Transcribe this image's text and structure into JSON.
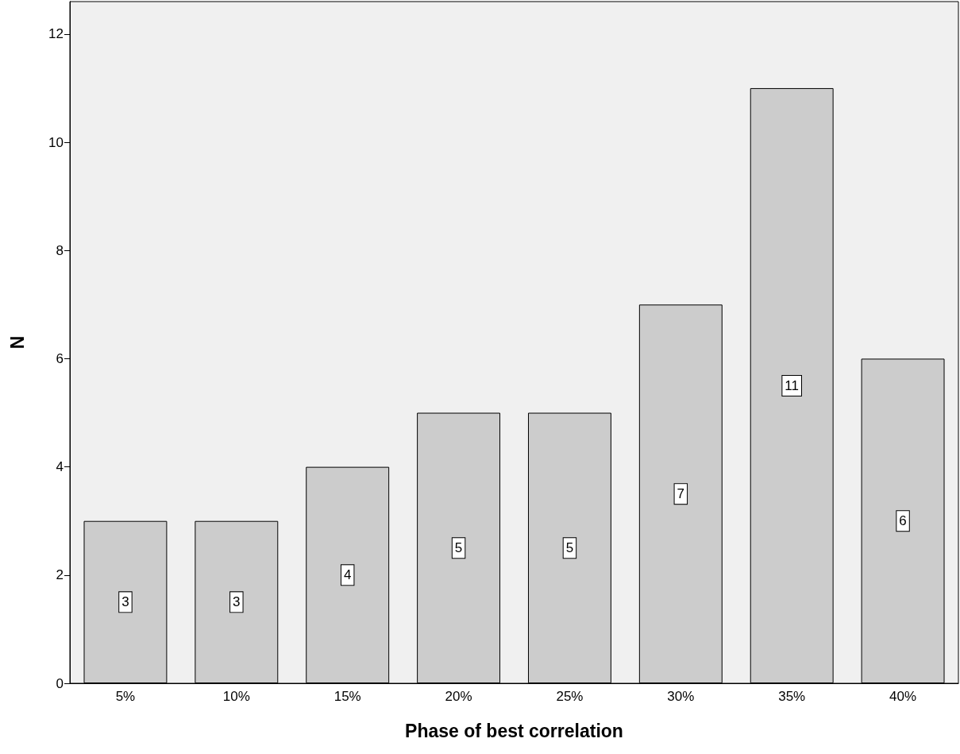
{
  "chart_data": {
    "type": "bar",
    "xlabel": "Phase of best correlation",
    "ylabel": "N",
    "categories": [
      "5%",
      "10%",
      "15%",
      "20%",
      "25%",
      "30%",
      "35%",
      "40%"
    ],
    "values": [
      3,
      3,
      4,
      5,
      5,
      7,
      11,
      6
    ],
    "color": "#cccccc",
    "ylim": [
      0,
      12.6
    ],
    "yticks": [
      0,
      2,
      4,
      6,
      8,
      10,
      12
    ],
    "data_labels": true
  }
}
